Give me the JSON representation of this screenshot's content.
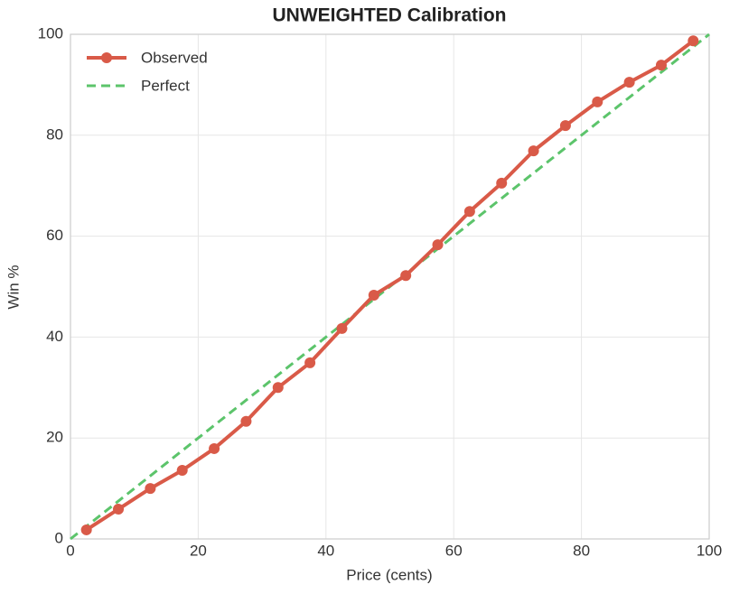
{
  "chart_data": {
    "type": "line",
    "title": "UNWEIGHTED Calibration",
    "x_label": "Price (cents)",
    "y_label": "Win %",
    "xlim": [
      0,
      100
    ],
    "ylim": [
      0,
      100
    ],
    "xticks": [
      0,
      20,
      40,
      60,
      80,
      100
    ],
    "yticks": [
      0,
      20,
      40,
      60,
      80,
      100
    ],
    "grid": true,
    "legend": "upper left",
    "series": [
      {
        "name": "Observed",
        "color": "#d95a48",
        "style": "solid",
        "marker": true,
        "x": [
          2.5,
          7.5,
          12.5,
          17.5,
          22.5,
          27.5,
          32.5,
          37.5,
          42.5,
          47.5,
          52.5,
          57.5,
          62.5,
          67.5,
          72.5,
          77.5,
          82.5,
          87.5,
          92.5,
          97.5
        ],
        "values": [
          1.8,
          5.9,
          10.0,
          13.6,
          17.9,
          23.3,
          30.0,
          34.9,
          41.7,
          48.3,
          52.2,
          58.3,
          64.9,
          70.5,
          76.9,
          81.9,
          86.6,
          90.5,
          93.9,
          98.7
        ]
      },
      {
        "name": "Perfect",
        "color": "#5cc46b",
        "style": "dashed",
        "marker": false,
        "x": [
          0,
          100
        ],
        "values": [
          0,
          100
        ]
      }
    ]
  }
}
